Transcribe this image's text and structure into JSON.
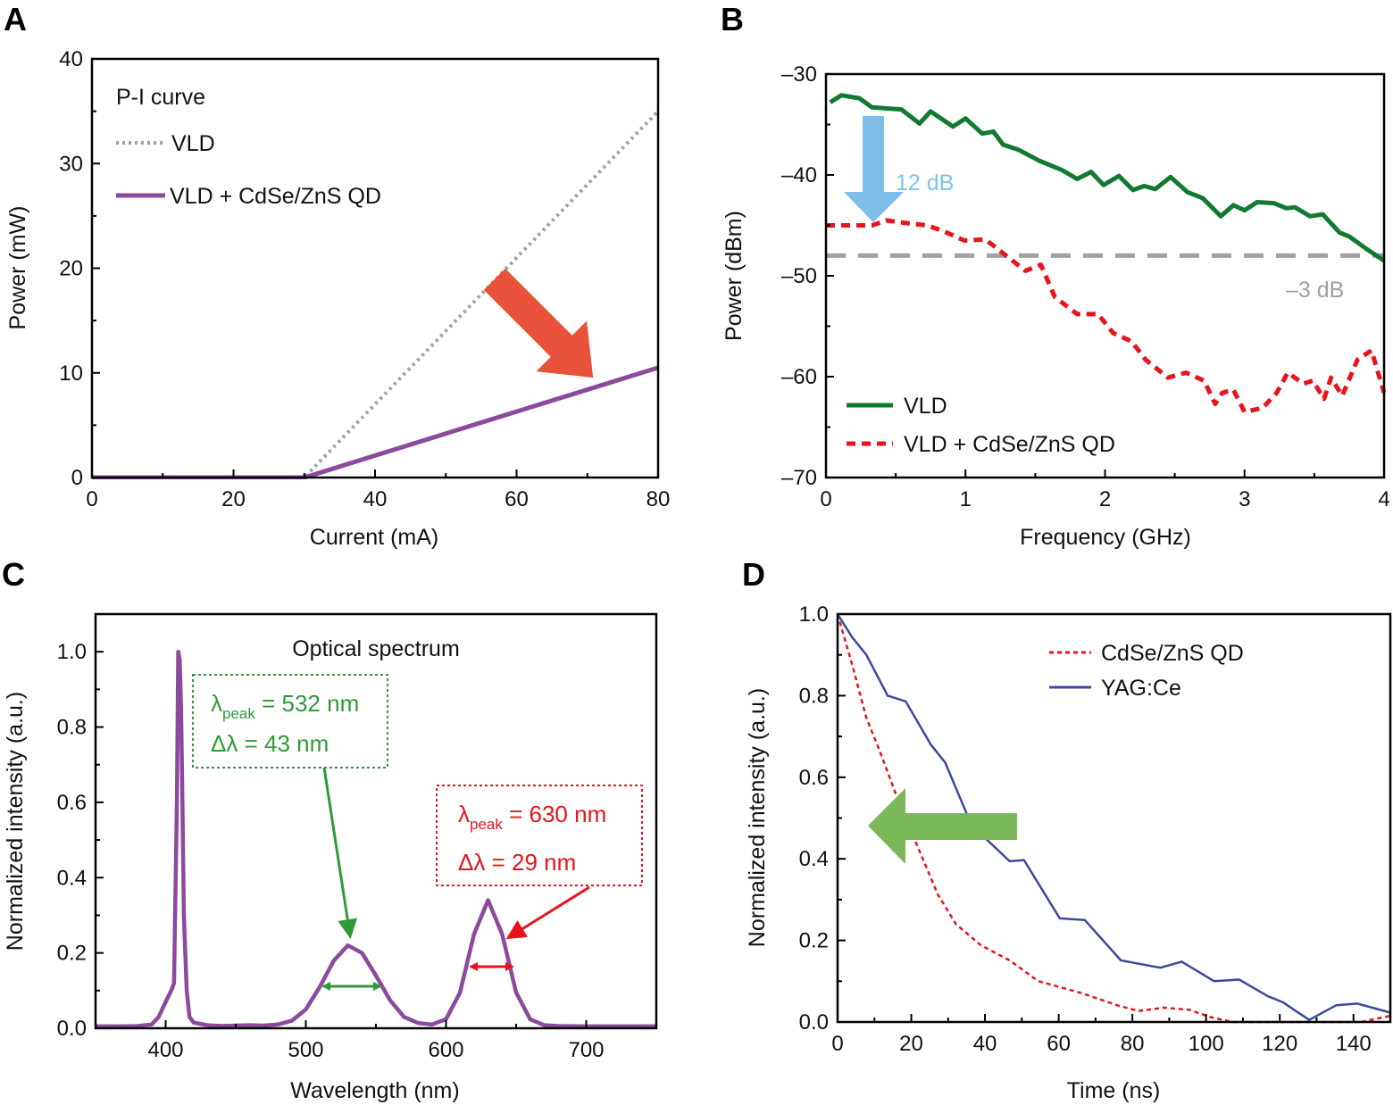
{
  "chart_data": [
    {
      "panel": "A",
      "type": "line",
      "xlabel": "Current (mA)",
      "ylabel": "Power (mW)",
      "xlim": [
        0,
        80
      ],
      "ylim": [
        0,
        40
      ],
      "xticks": [
        0,
        20,
        40,
        60,
        80
      ],
      "yticks": [
        0,
        10,
        20,
        30,
        40
      ],
      "legend_title": "P-I curve",
      "legend_position": "top-left",
      "series": [
        {
          "name": "VLD",
          "color": "#a0a0a0",
          "style": "dotted",
          "x": [
            0,
            30,
            80
          ],
          "y": [
            0,
            0,
            35
          ]
        },
        {
          "name": "VLD + CdSe/ZnS QD",
          "color": "#8b4a9c",
          "style": "solid",
          "x": [
            0,
            30,
            80
          ],
          "y": [
            0,
            0,
            10.5
          ]
        }
      ],
      "annotations": {
        "arrow_color": "#e8513a",
        "arrow": "down-right"
      }
    },
    {
      "panel": "B",
      "type": "line",
      "xlabel": "Frequency (GHz)",
      "ylabel": "Power (dBm)",
      "xlim": [
        0,
        4
      ],
      "ylim": [
        -70,
        -30
      ],
      "xticks": [
        0,
        1,
        2,
        3,
        4
      ],
      "yticks": [
        -70,
        -60,
        -50,
        -40,
        -30
      ],
      "ytick_labels": [
        "–70",
        "–60",
        "–50",
        "–40",
        "–30"
      ],
      "legend_position": "bottom-left",
      "series": [
        {
          "name": "VLD",
          "color": "#127a30",
          "style": "solid",
          "x": [
            0.03,
            0.11,
            0.24,
            0.33,
            0.54,
            0.67,
            0.75,
            0.91,
            1.0,
            1.12,
            1.2,
            1.27,
            1.38,
            1.53,
            1.69,
            1.8,
            1.9,
            1.99,
            2.1,
            2.2,
            2.28,
            2.36,
            2.47,
            2.59,
            2.7,
            2.83,
            2.92,
            3.0,
            3.09,
            3.21,
            3.3,
            3.36,
            3.47,
            3.56,
            3.68,
            3.75,
            3.88,
            4.0
          ],
          "y": [
            -32.8,
            -32.1,
            -32.4,
            -33.3,
            -33.5,
            -34.9,
            -33.7,
            -35.2,
            -34.4,
            -35.9,
            -35.7,
            -37.0,
            -37.5,
            -38.6,
            -39.5,
            -40.4,
            -39.7,
            -41.0,
            -40.1,
            -41.5,
            -41.1,
            -41.4,
            -40.2,
            -41.7,
            -42.3,
            -44.1,
            -43.0,
            -43.5,
            -42.7,
            -42.8,
            -43.3,
            -43.2,
            -44.1,
            -43.9,
            -45.7,
            -46.1,
            -47.4,
            -48.5
          ]
        },
        {
          "name": "VLD + CdSe/ZnS QD",
          "color": "#e8131b",
          "style": "dashed",
          "x": [
            0.0,
            0.33,
            0.43,
            0.59,
            0.72,
            0.83,
            0.99,
            1.14,
            1.2,
            1.3,
            1.43,
            1.54,
            1.64,
            1.8,
            1.95,
            2.06,
            2.19,
            2.29,
            2.45,
            2.58,
            2.71,
            2.79,
            2.84,
            2.92,
            3.0,
            3.13,
            3.23,
            3.31,
            3.42,
            3.49,
            3.57,
            3.62,
            3.7,
            3.81,
            3.91,
            4.0
          ],
          "y": [
            -45.0,
            -45.0,
            -44.5,
            -44.8,
            -45.0,
            -45.5,
            -46.5,
            -46.4,
            -47.0,
            -48.1,
            -49.5,
            -48.9,
            -52.1,
            -53.8,
            -53.8,
            -55.7,
            -56.5,
            -58.3,
            -60.1,
            -59.6,
            -60.4,
            -62.7,
            -61.6,
            -61.3,
            -63.5,
            -63.1,
            -61.6,
            -59.6,
            -60.7,
            -60.4,
            -62.2,
            -60.1,
            -61.9,
            -58.3,
            -57.4,
            -61.6
          ]
        }
      ],
      "reference_line": {
        "y": -48,
        "label": "–3 dB",
        "color": "#a0a0a0"
      },
      "annotations": {
        "drop_label": "12 dB",
        "drop_color": "#7dbde9"
      }
    },
    {
      "panel": "C",
      "type": "line",
      "title": "Optical spectrum",
      "xlabel": "Wavelength (nm)",
      "ylabel": "Normalized intensity (a.u.)",
      "xlim": [
        350,
        750
      ],
      "ylim": [
        0,
        1.1
      ],
      "xticks": [
        400,
        500,
        600,
        700
      ],
      "yticks": [
        0.0,
        0.2,
        0.4,
        0.6,
        0.8,
        1.0
      ],
      "ytick_labels": [
        "0.0",
        "0.2",
        "0.4",
        "0.6",
        "0.8",
        "1.0"
      ],
      "series": [
        {
          "color": "#8b4a9c",
          "style": "solid",
          "x": [
            350,
            360,
            370,
            380,
            390,
            395,
            400,
            404,
            406,
            408,
            409,
            410,
            411,
            412,
            413,
            415,
            417,
            420,
            430,
            440,
            450,
            460,
            470,
            480,
            490,
            500,
            510,
            520,
            530,
            540,
            550,
            560,
            570,
            580,
            590,
            600,
            610,
            620,
            630,
            640,
            650,
            660,
            670,
            680,
            700,
            720,
            750
          ],
          "y": [
            0.005,
            0.005,
            0.005,
            0.006,
            0.01,
            0.03,
            0.07,
            0.1,
            0.12,
            0.6,
            1.0,
            0.98,
            0.85,
            0.6,
            0.3,
            0.1,
            0.03,
            0.015,
            0.008,
            0.006,
            0.007,
            0.008,
            0.007,
            0.01,
            0.02,
            0.05,
            0.11,
            0.18,
            0.22,
            0.2,
            0.14,
            0.075,
            0.03,
            0.014,
            0.01,
            0.024,
            0.095,
            0.25,
            0.34,
            0.25,
            0.095,
            0.024,
            0.008,
            0.006,
            0.005,
            0.005,
            0.005
          ]
        }
      ],
      "annotations": {
        "green_box": {
          "symbol": "λ",
          "subscript": "peak",
          "value": " = 532 nm",
          "width": "Δλ = 43 nm",
          "color": "#2e9a3a"
        },
        "red_box": {
          "symbol": "λ",
          "subscript": "peak",
          "value": " = 630 nm",
          "width": "Δλ = 29 nm",
          "color": "#e8131b"
        }
      }
    },
    {
      "panel": "D",
      "type": "line",
      "xlabel": "Time (ns)",
      "ylabel": "Normalized intensity (a.u.)",
      "xlim": [
        0,
        150
      ],
      "ylim": [
        0,
        1.0
      ],
      "xticks": [
        0,
        20,
        40,
        60,
        80,
        100,
        120,
        140
      ],
      "yticks": [
        0.0,
        0.2,
        0.4,
        0.6,
        0.8,
        1.0
      ],
      "ytick_labels": [
        "0.0",
        "0.2",
        "0.4",
        "0.6",
        "0.8",
        "1.0"
      ],
      "legend_position": "top-right",
      "series": [
        {
          "name": "CdSe/ZnS QD",
          "color": "#e8131b",
          "style": "dotted",
          "x": [
            0,
            3.9,
            7.8,
            11.7,
            17.5,
            22.4,
            27.2,
            32.1,
            38.9,
            46.7,
            54.5,
            66.2,
            75.9,
            81.7,
            88.5,
            95.4,
            101.2,
            107,
            119.7,
            129.4,
            142,
            150
          ],
          "y": [
            1.0,
            0.878,
            0.746,
            0.658,
            0.518,
            0.416,
            0.313,
            0.24,
            0.188,
            0.151,
            0.1,
            0.071,
            0.041,
            0.027,
            0.035,
            0.03,
            0.012,
            0.0,
            0.0,
            0.0,
            0.0,
            0.015
          ]
        },
        {
          "name": "YAG:Ce",
          "color": "#3a4a9c",
          "style": "solid",
          "x": [
            0,
            3.9,
            7.8,
            13.6,
            18.5,
            25.3,
            29.2,
            36,
            39.9,
            46.7,
            50.6,
            60.3,
            67.1,
            76.9,
            87.6,
            93.4,
            102.2,
            109,
            116.8,
            120.7,
            128,
            135.3,
            141.1,
            150
          ],
          "y": [
            1.0,
            0.944,
            0.9,
            0.8,
            0.786,
            0.68,
            0.636,
            0.49,
            0.452,
            0.394,
            0.397,
            0.254,
            0.25,
            0.151,
            0.133,
            0.148,
            0.1,
            0.104,
            0.063,
            0.049,
            0.005,
            0.041,
            0.045,
            0.023
          ]
        }
      ],
      "annotations": {
        "arrow_color": "#7ab85a",
        "arrow": "left"
      }
    }
  ],
  "panel_letters": [
    "A",
    "B",
    "C",
    "D"
  ]
}
